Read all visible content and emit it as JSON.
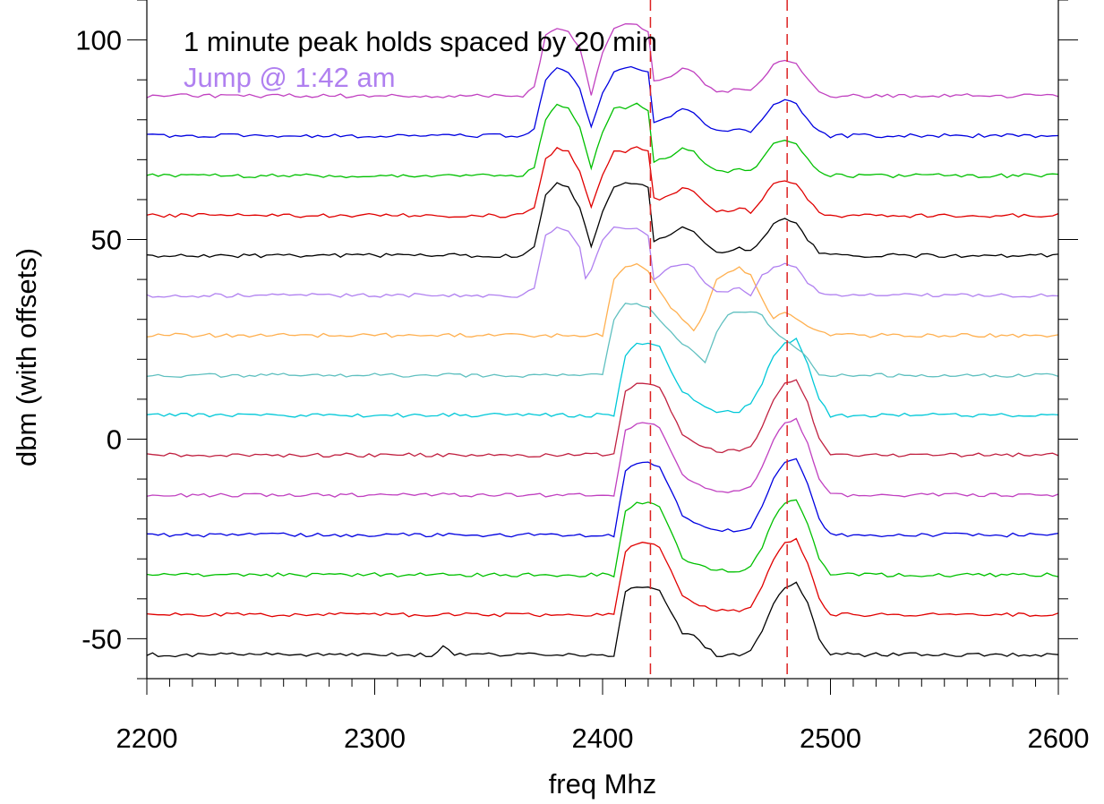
{
  "chart_data": {
    "type": "line",
    "title": "",
    "xlabel": "freq Mhz",
    "ylabel": "dbm (with offsets)",
    "xlim": [
      2200,
      2600
    ],
    "ylim": [
      -60,
      110
    ],
    "x_ticks": [
      2200,
      2300,
      2400,
      2500,
      2600
    ],
    "x_tick_labels": [
      "2200",
      "2300",
      "2400",
      "2500",
      "2600"
    ],
    "y_ticks": [
      -50,
      0,
      50,
      100
    ],
    "y_tick_labels": [
      "-50",
      "0",
      "50",
      "100"
    ],
    "grid": false,
    "annotations": [
      {
        "text": "1 minute peak holds spaced by 20 min",
        "color": "#000000"
      },
      {
        "text": "Jump @ 1:42 am",
        "color": "#b080f0"
      }
    ],
    "reference_lines": [
      {
        "x": 2421,
        "color": "#dd2222",
        "style": "dashed"
      },
      {
        "x": 2481,
        "color": "#dd2222",
        "style": "dashed"
      }
    ],
    "series": [
      {
        "offset": -54,
        "color": "#000000",
        "profile": "late",
        "x": [
          2200,
          2325,
          2330,
          2335,
          2360,
          2380,
          2405,
          2410,
          2415,
          2420,
          2425,
          2430,
          2435,
          2440,
          2445,
          2450,
          2455,
          2460,
          2465,
          2470,
          2475,
          2480,
          2485,
          2490,
          2495,
          2500,
          2520,
          2600
        ],
        "y": [
          -54,
          -54,
          -52,
          -54,
          -54,
          -54,
          -54,
          -38,
          -37,
          -37,
          -38,
          -43,
          -49,
          -49,
          -52,
          -54,
          -54,
          -54,
          -53,
          -48,
          -41,
          -37,
          -36,
          -41,
          -50,
          -54,
          -54,
          -54
        ]
      },
      {
        "offset": -44,
        "color": "#e00000",
        "profile": "late",
        "x": [
          2200,
          2405,
          2410,
          2415,
          2420,
          2425,
          2430,
          2435,
          2440,
          2445,
          2450,
          2455,
          2460,
          2465,
          2470,
          2475,
          2480,
          2485,
          2490,
          2495,
          2500,
          2600
        ],
        "y": [
          -44,
          -44,
          -28,
          -26,
          -26,
          -27,
          -33,
          -39,
          -41,
          -42,
          -43,
          -43,
          -43,
          -42,
          -37,
          -30,
          -26,
          -25,
          -31,
          -40,
          -44,
          -44
        ]
      },
      {
        "offset": -34,
        "color": "#00c000",
        "profile": "late",
        "x": [
          2200,
          2405,
          2410,
          2415,
          2420,
          2425,
          2430,
          2435,
          2440,
          2445,
          2450,
          2455,
          2460,
          2465,
          2470,
          2475,
          2480,
          2485,
          2490,
          2495,
          2500,
          2600
        ],
        "y": [
          -34,
          -34,
          -18,
          -16,
          -16,
          -17,
          -23,
          -30,
          -31,
          -32,
          -33,
          -33,
          -33,
          -32,
          -27,
          -20,
          -16,
          -15,
          -21,
          -30,
          -34,
          -34
        ]
      },
      {
        "offset": -24,
        "color": "#0000e0",
        "profile": "late",
        "x": [
          2200,
          2405,
          2410,
          2415,
          2420,
          2425,
          2430,
          2435,
          2440,
          2445,
          2450,
          2455,
          2460,
          2465,
          2470,
          2475,
          2480,
          2485,
          2490,
          2495,
          2500,
          2600
        ],
        "y": [
          -24,
          -24,
          -8,
          -6,
          -6,
          -7,
          -13,
          -19,
          -21,
          -22,
          -23,
          -23,
          -23,
          -22,
          -17,
          -10,
          -6,
          -5,
          -11,
          -20,
          -24,
          -24
        ]
      },
      {
        "offset": -14,
        "color": "#c040c0",
        "profile": "late",
        "x": [
          2200,
          2405,
          2410,
          2415,
          2420,
          2425,
          2430,
          2435,
          2440,
          2445,
          2450,
          2455,
          2460,
          2465,
          2470,
          2475,
          2480,
          2485,
          2490,
          2495,
          2500,
          2600
        ],
        "y": [
          -14,
          -14,
          2,
          4,
          4,
          3,
          -3,
          -9,
          -11,
          -12,
          -13,
          -13,
          -13,
          -12,
          -7,
          0,
          4,
          5,
          -1,
          -10,
          -14,
          -14
        ]
      },
      {
        "offset": -4,
        "color": "#c02040",
        "profile": "late",
        "x": [
          2200,
          2405,
          2410,
          2415,
          2420,
          2425,
          2430,
          2435,
          2440,
          2445,
          2450,
          2455,
          2460,
          2465,
          2470,
          2475,
          2480,
          2485,
          2490,
          2495,
          2500,
          2600
        ],
        "y": [
          -4,
          -4,
          12,
          14,
          14,
          13,
          7,
          1,
          -1,
          -2,
          -3,
          -3,
          -3,
          -2,
          3,
          10,
          14,
          15,
          9,
          0,
          -4,
          -4
        ]
      },
      {
        "offset": 6,
        "color": "#00c8d8",
        "profile": "late",
        "x": [
          2200,
          2405,
          2410,
          2415,
          2420,
          2425,
          2430,
          2435,
          2440,
          2445,
          2450,
          2455,
          2460,
          2465,
          2470,
          2475,
          2480,
          2485,
          2490,
          2495,
          2500,
          2600
        ],
        "y": [
          6,
          6,
          21,
          24,
          24,
          23,
          17,
          12,
          10,
          8,
          7,
          7,
          7,
          9,
          14,
          21,
          24,
          25,
          19,
          10,
          6,
          6
        ]
      },
      {
        "offset": 16,
        "color": "#60c0c0",
        "profile": "transition",
        "x": [
          2200,
          2360,
          2365,
          2370,
          2380,
          2390,
          2400,
          2405,
          2410,
          2415,
          2420,
          2425,
          2430,
          2435,
          2440,
          2445,
          2450,
          2455,
          2460,
          2465,
          2470,
          2475,
          2480,
          2485,
          2490,
          2495,
          2500,
          2600
        ],
        "y": [
          16,
          16,
          16,
          16,
          16,
          16,
          16,
          30,
          34,
          34,
          33,
          30,
          27,
          24,
          22,
          19,
          27,
          31,
          32,
          32,
          31,
          27,
          25,
          23,
          20,
          16,
          16,
          16
        ]
      },
      {
        "offset": 26,
        "color": "#ffb050",
        "profile": "transition",
        "x": [
          2200,
          2395,
          2400,
          2405,
          2410,
          2415,
          2420,
          2425,
          2430,
          2435,
          2440,
          2445,
          2450,
          2455,
          2460,
          2465,
          2470,
          2475,
          2480,
          2485,
          2490,
          2495,
          2500,
          2600
        ],
        "y": [
          26,
          26,
          26,
          40,
          43,
          44,
          42,
          37,
          33,
          30,
          27,
          32,
          40,
          42,
          43,
          41,
          35,
          30,
          32,
          30,
          28,
          27,
          26,
          26
        ]
      },
      {
        "offset": 36,
        "color": "#b080f0",
        "profile": "early",
        "x": [
          2200,
          2365,
          2370,
          2375,
          2380,
          2385,
          2390,
          2393,
          2396,
          2400,
          2405,
          2410,
          2415,
          2420,
          2423,
          2425,
          2430,
          2435,
          2440,
          2445,
          2450,
          2455,
          2460,
          2465,
          2470,
          2475,
          2480,
          2485,
          2490,
          2495,
          2500,
          2600
        ],
        "y": [
          36,
          36,
          38,
          51,
          53,
          52,
          48,
          39,
          44,
          50,
          53,
          53,
          53,
          51,
          38,
          41,
          43,
          44,
          43,
          39,
          37,
          37,
          38,
          36,
          41,
          43,
          44,
          43,
          39,
          37,
          36,
          36
        ]
      },
      {
        "offset": 46,
        "color": "#000000",
        "profile": "early",
        "x": [
          2200,
          2365,
          2370,
          2375,
          2380,
          2385,
          2390,
          2395,
          2400,
          2405,
          2410,
          2415,
          2420,
          2423,
          2425,
          2430,
          2435,
          2440,
          2445,
          2450,
          2455,
          2460,
          2465,
          2470,
          2475,
          2480,
          2485,
          2490,
          2495,
          2500,
          2600
        ],
        "y": [
          46,
          46,
          48,
          61,
          64,
          63,
          58,
          48,
          57,
          63,
          64,
          64,
          63,
          47,
          50,
          51,
          53,
          52,
          49,
          47,
          47,
          48,
          47,
          50,
          54,
          55,
          54,
          50,
          47,
          46,
          46
        ]
      },
      {
        "offset": 56,
        "color": "#e00000",
        "profile": "early",
        "x": [
          2200,
          2365,
          2370,
          2375,
          2380,
          2385,
          2390,
          2395,
          2400,
          2405,
          2410,
          2415,
          2420,
          2423,
          2425,
          2430,
          2435,
          2440,
          2445,
          2450,
          2455,
          2460,
          2465,
          2470,
          2475,
          2480,
          2485,
          2490,
          2495,
          2500,
          2600
        ],
        "y": [
          56,
          56,
          58,
          70,
          73,
          72,
          67,
          58,
          66,
          72,
          72,
          73,
          72,
          58,
          60,
          61,
          63,
          62,
          59,
          57,
          57,
          58,
          57,
          60,
          64,
          65,
          64,
          60,
          57,
          56,
          56
        ]
      },
      {
        "offset": 66,
        "color": "#00c000",
        "profile": "early",
        "x": [
          2200,
          2365,
          2370,
          2375,
          2380,
          2385,
          2390,
          2395,
          2400,
          2405,
          2410,
          2415,
          2420,
          2423,
          2425,
          2430,
          2435,
          2440,
          2445,
          2450,
          2455,
          2460,
          2465,
          2470,
          2475,
          2480,
          2485,
          2490,
          2495,
          2500,
          2600
        ],
        "y": [
          66,
          66,
          68,
          80,
          84,
          83,
          78,
          68,
          77,
          83,
          83,
          84,
          82,
          67,
          70,
          71,
          73,
          72,
          69,
          67,
          67,
          68,
          67,
          70,
          74,
          75,
          74,
          70,
          67,
          66,
          66
        ]
      },
      {
        "offset": 76,
        "color": "#0000e0",
        "profile": "early",
        "x": [
          2200,
          2365,
          2370,
          2375,
          2380,
          2385,
          2390,
          2395,
          2400,
          2405,
          2410,
          2415,
          2420,
          2423,
          2425,
          2430,
          2435,
          2440,
          2445,
          2450,
          2455,
          2460,
          2465,
          2470,
          2475,
          2480,
          2485,
          2490,
          2495,
          2500,
          2600
        ],
        "y": [
          76,
          76,
          78,
          90,
          93,
          92,
          88,
          78,
          87,
          92,
          93,
          93,
          92,
          77,
          80,
          81,
          83,
          82,
          79,
          77,
          77,
          78,
          77,
          80,
          84,
          85,
          84,
          80,
          77,
          76,
          76
        ]
      },
      {
        "offset": 86,
        "color": "#c040c0",
        "profile": "early",
        "x": [
          2200,
          2365,
          2370,
          2375,
          2380,
          2385,
          2390,
          2395,
          2400,
          2405,
          2410,
          2415,
          2420,
          2423,
          2425,
          2430,
          2435,
          2440,
          2445,
          2450,
          2455,
          2460,
          2465,
          2470,
          2475,
          2480,
          2485,
          2490,
          2495,
          2500,
          2600
        ],
        "y": [
          86,
          86,
          88,
          101,
          103,
          102,
          98,
          86,
          97,
          103,
          104,
          104,
          102,
          87,
          90,
          91,
          93,
          92,
          89,
          87,
          87,
          88,
          87,
          90,
          94,
          95,
          94,
          90,
          87,
          86,
          86
        ]
      }
    ]
  }
}
